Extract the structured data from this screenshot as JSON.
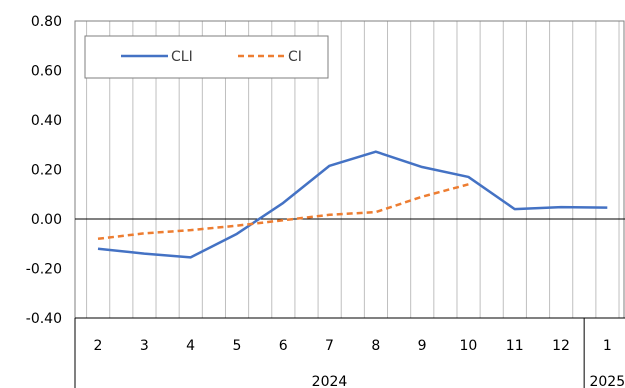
{
  "chart_data": {
    "type": "line",
    "title": "",
    "ylim": [
      -0.4,
      0.8
    ],
    "ytick_step": 0.2,
    "y_tick_labels": [
      "0.80",
      "0.60",
      "0.40",
      "0.20",
      "0.00",
      "-0.20",
      "-0.40"
    ],
    "x": [
      "2",
      "3",
      "4",
      "5",
      "6",
      "7",
      "8",
      "9",
      "10",
      "11",
      "12",
      "1"
    ],
    "x_group_labels": [
      {
        "label": "2024",
        "months": [
          "2",
          "3",
          "4",
          "5",
          "6",
          "7",
          "8",
          "9",
          "10",
          "11",
          "12"
        ]
      },
      {
        "label": "2025",
        "months": [
          "1"
        ]
      }
    ],
    "grid": "vertical-and-zero-line",
    "legend_position": "top-left",
    "series": [
      {
        "name": "CLI",
        "style": "solid",
        "color": "#4472C4",
        "values": [
          -0.12,
          -0.14,
          -0.155,
          -0.06,
          0.065,
          0.215,
          0.272,
          0.21,
          0.17,
          0.04,
          0.048,
          0.046
        ]
      },
      {
        "name": "CI",
        "style": "dashed",
        "color": "#ED7D31",
        "values": [
          -0.08,
          -0.058,
          -0.045,
          -0.027,
          -0.005,
          0.017,
          0.028,
          0.09,
          0.14,
          null,
          null,
          null
        ]
      }
    ]
  }
}
